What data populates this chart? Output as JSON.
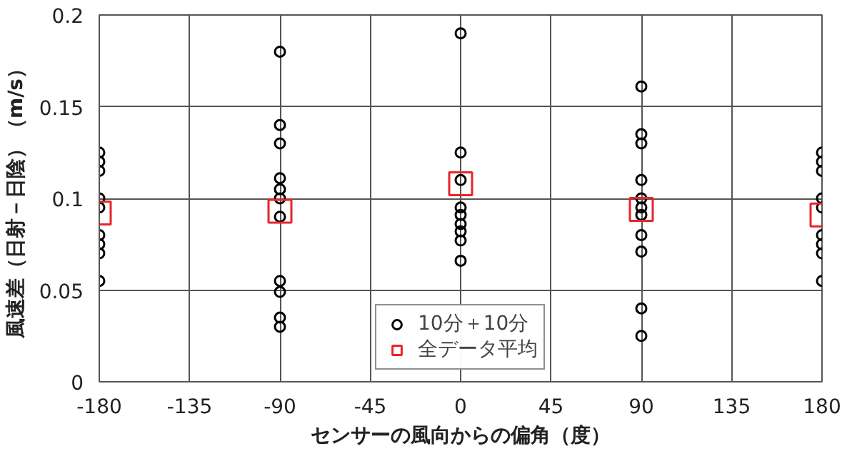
{
  "chart_data": {
    "type": "scatter",
    "xlabel": "センサーの風向からの偏角（度）",
    "ylabel": "風速差（日射－日陰）（m/s）",
    "xlim": [
      -180,
      180
    ],
    "xticks": [
      -180,
      -135,
      -90,
      -45,
      0,
      45,
      90,
      135,
      180
    ],
    "ylim": [
      0,
      0.2
    ],
    "yticks": [
      0,
      0.05,
      0.1,
      0.15,
      0.2
    ],
    "grid": true,
    "legend": "bottom",
    "series": [
      {
        "name": "10分＋10分",
        "color": "#000000",
        "marker": "circle",
        "x": [
          -180,
          -180,
          -180,
          -180,
          -180,
          -180,
          -180,
          -180,
          -180,
          -90,
          -90,
          -90,
          -90,
          -90,
          -90,
          -90,
          -90,
          -90,
          -90,
          -90,
          0,
          0,
          0,
          0,
          0,
          0,
          0,
          0,
          0,
          90,
          90,
          90,
          90,
          90,
          90,
          90,
          90,
          90,
          90,
          90,
          180,
          180,
          180,
          180,
          180,
          180,
          180,
          180,
          180
        ],
        "values": [
          0.125,
          0.12,
          0.115,
          0.1,
          0.095,
          0.08,
          0.075,
          0.07,
          0.055,
          0.18,
          0.14,
          0.13,
          0.111,
          0.105,
          0.1,
          0.09,
          0.055,
          0.049,
          0.035,
          0.03,
          0.19,
          0.125,
          0.11,
          0.095,
          0.091,
          0.086,
          0.082,
          0.077,
          0.066,
          0.161,
          0.135,
          0.13,
          0.11,
          0.1,
          0.095,
          0.091,
          0.08,
          0.071,
          0.04,
          0.025,
          0.125,
          0.12,
          0.115,
          0.1,
          0.095,
          0.08,
          0.075,
          0.07,
          0.055
        ]
      },
      {
        "name": "全データ平均",
        "color": "#e8252a",
        "marker": "square",
        "x": [
          -180,
          -90,
          0,
          90,
          180
        ],
        "values": [
          0.092,
          0.093,
          0.108,
          0.094,
          0.091
        ]
      }
    ]
  }
}
